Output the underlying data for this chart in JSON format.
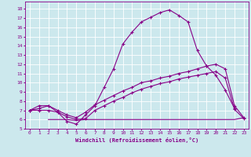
{
  "xlabel": "Windchill (Refroidissement éolien,°C)",
  "bg_color": "#cce8ed",
  "line_color": "#880088",
  "grid_color": "#ffffff",
  "xlim": [
    -0.5,
    23.5
  ],
  "ylim": [
    5,
    18.8
  ],
  "xticks": [
    0,
    1,
    2,
    3,
    4,
    5,
    6,
    7,
    8,
    9,
    10,
    11,
    12,
    13,
    14,
    15,
    16,
    17,
    18,
    19,
    20,
    21,
    22,
    23
  ],
  "yticks": [
    5,
    6,
    7,
    8,
    9,
    10,
    11,
    12,
    13,
    14,
    15,
    16,
    17,
    18
  ],
  "curve1_x": [
    0,
    1,
    2,
    3,
    4,
    5,
    6,
    7,
    8,
    9,
    10,
    11,
    12,
    13,
    14,
    15,
    16,
    17,
    18,
    19,
    20,
    21,
    22
  ],
  "curve1_y": [
    7.0,
    7.5,
    7.5,
    6.8,
    5.8,
    5.5,
    6.5,
    7.5,
    9.5,
    11.5,
    14.2,
    15.5,
    16.6,
    17.1,
    17.6,
    17.9,
    17.3,
    16.6,
    13.5,
    11.8,
    10.8,
    9.2,
    7.2
  ],
  "curve2_x": [
    0,
    1,
    2,
    3,
    4,
    5,
    6,
    7,
    8,
    9,
    10,
    11,
    12,
    13,
    14,
    15,
    16,
    17,
    18,
    19,
    20,
    21,
    22,
    23
  ],
  "curve2_y": [
    7.0,
    7.2,
    7.5,
    7.0,
    6.5,
    6.2,
    6.8,
    7.6,
    8.1,
    8.6,
    9.1,
    9.5,
    10.0,
    10.2,
    10.5,
    10.7,
    11.0,
    11.2,
    11.5,
    11.8,
    12.0,
    11.5,
    7.5,
    6.2
  ],
  "curve3_x": [
    0,
    1,
    2,
    3,
    4,
    5,
    6,
    7,
    8,
    9,
    10,
    11,
    12,
    13,
    14,
    15,
    16,
    17,
    18,
    19,
    20,
    21,
    22,
    23
  ],
  "curve3_y": [
    7.0,
    7.0,
    7.0,
    6.8,
    6.3,
    6.0,
    6.1,
    7.0,
    7.5,
    8.0,
    8.4,
    8.9,
    9.3,
    9.6,
    9.9,
    10.1,
    10.4,
    10.6,
    10.8,
    11.0,
    11.2,
    10.5,
    7.1,
    6.1
  ],
  "curve4_x": [
    2,
    3,
    4,
    5,
    6,
    7,
    8,
    9,
    10,
    11,
    12,
    13,
    14,
    15,
    16,
    17,
    18,
    19,
    20,
    21,
    22,
    23
  ],
  "curve4_y": [
    6.0,
    6.0,
    6.0,
    5.9,
    6.0,
    6.0,
    6.0,
    6.0,
    6.0,
    6.0,
    6.0,
    6.0,
    6.0,
    6.0,
    6.0,
    6.0,
    6.0,
    6.0,
    6.0,
    6.0,
    6.0,
    6.2
  ]
}
